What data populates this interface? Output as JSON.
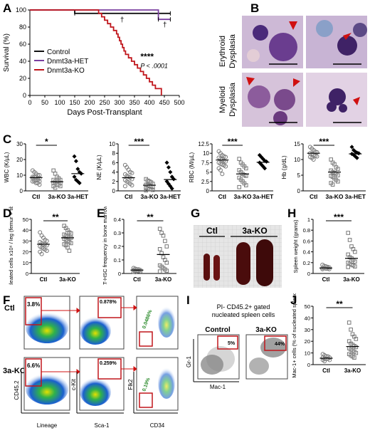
{
  "panels": {
    "A": "A",
    "B": "B",
    "C": "C",
    "D": "D",
    "E": "E",
    "F": "F",
    "G": "G",
    "H": "H",
    "I": "I",
    "J": "J"
  },
  "colors": {
    "control": "#111111",
    "het": "#7a3fa0",
    "ko": "#c0161c",
    "arrow": "#d01010",
    "gate": "#c0161c",
    "cell_bg": "#d8c8e0",
    "nucleus": "#5a2f8a"
  },
  "panelB": {
    "erythroid_label": "Erythroid\nDysplasia",
    "myeloid_label": "Myeloid\nDysplasia",
    "erythroid_line1": "Erythroid",
    "erythroid_line2": "Dysplasia",
    "myeloid_line1": "Myeloid",
    "myeloid_line2": "Dysplasia"
  },
  "panelF": {
    "ctl_label": "Ctl",
    "ko_label": "3a-KO",
    "ylabel1": "CD45.2",
    "xlabel1": "Lineage",
    "ylabel2": "c-Kit",
    "xlabel2": "Sca-1",
    "ylabel3": "Flk2",
    "xlabel3": "CD34",
    "gates": {
      "ctl": [
        "3.8%",
        "0.878%",
        "0.0486%"
      ],
      "ko": [
        "6.6%",
        "0.259%",
        "0.19%"
      ]
    }
  },
  "panelG": {
    "ctl": "Ctl",
    "ko": "3a-KO"
  },
  "panelI": {
    "title_line1": "PI- CD45.2+ gated",
    "title_line2": "nucleated spleen cells",
    "control": "Control",
    "ko": "3a-KO",
    "ylabel": "Gr-1",
    "xlabel": "Mac-1",
    "ctl_pct": "5%",
    "ko_pct": "44%"
  },
  "chart_data": [
    {
      "id": "A",
      "type": "line",
      "title": "",
      "xlabel": "Days Post-Transplant",
      "ylabel": "Survival (%)",
      "xlim": [
        0,
        500
      ],
      "ylim": [
        0,
        100
      ],
      "xticks": [
        0,
        50,
        100,
        150,
        200,
        250,
        300,
        350,
        400,
        450,
        500
      ],
      "yticks": [
        0,
        20,
        40,
        60,
        80,
        100
      ],
      "series": [
        {
          "name": "Control",
          "x": [
            0,
            150,
            470
          ],
          "y": [
            100,
            96,
            96
          ]
        },
        {
          "name": "Dnmt3a-HET",
          "x": [
            0,
            430,
            470
          ],
          "y": [
            100,
            89,
            89
          ]
        },
        {
          "name": "Dnmt3a-KO",
          "x": [
            0,
            230,
            240,
            250,
            260,
            270,
            280,
            290,
            295,
            300,
            305,
            310,
            315,
            320,
            330,
            340,
            350,
            360,
            370,
            380,
            390,
            400,
            410,
            420,
            440
          ],
          "y": [
            100,
            96,
            92,
            88,
            84,
            80,
            76,
            72,
            68,
            64,
            60,
            56,
            52,
            48,
            44,
            40,
            36,
            32,
            28,
            24,
            20,
            16,
            12,
            8,
            0
          ]
        }
      ],
      "annotations": [
        "****",
        "P < .0001",
        "†",
        "†"
      ],
      "legend_placement": "center-left"
    },
    {
      "id": "C-WBC",
      "type": "scatter",
      "ylabel": "WBC (K/µL)",
      "categories": [
        "Ctl",
        "3a-KO",
        "3a-HET"
      ],
      "ylim": [
        0,
        30
      ],
      "yticks": [
        0,
        10,
        20,
        30
      ],
      "sig": "*",
      "points": [
        [
          13,
          12,
          11,
          10,
          10,
          9,
          9,
          9,
          8,
          8,
          8,
          7,
          7,
          7,
          6,
          6,
          6,
          5,
          5,
          4
        ],
        [
          13,
          11,
          9,
          8,
          7,
          7,
          6,
          6,
          6,
          5,
          5,
          5,
          4,
          4,
          3,
          3,
          2
        ],
        [
          22,
          19,
          14,
          12,
          11,
          9,
          7,
          6,
          5
        ]
      ],
      "means": [
        8.5,
        5.8,
        11
      ]
    },
    {
      "id": "C-NE",
      "type": "scatter",
      "ylabel": "NE (K/µL)",
      "categories": [
        "Ctl",
        "3a-KO",
        "3a-HET"
      ],
      "ylim": [
        0,
        10
      ],
      "yticks": [
        0,
        2,
        4,
        6,
        8,
        10
      ],
      "sig": "***",
      "points": [
        [
          5.5,
          5,
          4.5,
          4,
          3.8,
          3.5,
          3.2,
          3,
          2.8,
          2.5,
          2.3,
          2,
          1.8,
          1.5,
          1.2,
          1
        ],
        [
          2.5,
          2.2,
          2,
          1.8,
          1.5,
          1.3,
          1.2,
          1,
          0.9,
          0.8,
          0.6,
          0.5,
          0.4,
          0.3,
          0.2,
          0.1
        ],
        [
          6,
          5,
          4,
          3,
          2.5,
          2,
          1.5,
          1,
          0.5
        ]
      ],
      "means": [
        2.8,
        1.2,
        2.4
      ]
    },
    {
      "id": "C-RBC",
      "type": "scatter",
      "ylabel": "RBC (M/µL)",
      "categories": [
        "Ctl",
        "3a-KO",
        "3a-HET"
      ],
      "ylim": [
        0,
        12.5
      ],
      "yticks": [
        0,
        2.5,
        5,
        7.5,
        10,
        12.5
      ],
      "sig": "***",
      "points": [
        [
          10.5,
          10,
          9.5,
          9.2,
          9,
          8.8,
          8.5,
          8.3,
          8,
          7.8,
          7.5,
          7.2,
          7,
          6.8,
          6.5,
          6,
          5.5,
          4.5
        ],
        [
          8.5,
          7.5,
          7,
          6.5,
          6,
          5.5,
          5,
          4.5,
          4.2,
          4,
          3.5,
          3,
          2.5,
          2,
          1.5,
          1
        ],
        [
          9.5,
          9,
          8.5,
          8,
          7.8,
          7.5,
          7,
          6.5,
          6
        ]
      ],
      "means": [
        8.2,
        4.5,
        7.6
      ]
    },
    {
      "id": "C-Hb",
      "type": "scatter",
      "ylabel": "Hb (g/dL)",
      "categories": [
        "Ctl",
        "3a-KO",
        "3a-HET"
      ],
      "ylim": [
        0,
        15
      ],
      "yticks": [
        0,
        5,
        10,
        15
      ],
      "sig": "***",
      "points": [
        [
          14,
          13.5,
          13,
          12.5,
          12.3,
          12,
          11.8,
          11.5,
          11.2,
          11,
          10.8,
          10.5,
          10
        ],
        [
          10,
          9,
          8.5,
          7.5,
          7,
          6.5,
          6,
          5.8,
          5.5,
          5,
          4.8,
          4.5,
          4,
          3.5,
          3,
          2.5,
          2
        ],
        [
          14,
          13,
          12.5,
          12.2,
          12,
          11.8,
          11.5,
          11,
          10.5
        ]
      ],
      "means": [
        12,
        6,
        11.8
      ]
    },
    {
      "id": "D",
      "type": "scatter",
      "ylabel": "Nucleated cells x10⁶ / leg (femur + tibia)",
      "categories": [
        "Ctl",
        "3a-KO"
      ],
      "ylim": [
        0,
        50
      ],
      "yticks": [
        0,
        10,
        20,
        30,
        40,
        50
      ],
      "sig": "**",
      "points": [
        [
          38,
          35,
          33,
          31,
          30,
          29,
          28,
          27,
          27,
          26,
          25,
          24,
          23,
          22,
          21,
          20,
          18
        ],
        [
          44,
          42,
          40,
          38,
          37,
          36,
          35,
          34,
          33,
          33,
          32,
          31,
          30,
          29,
          28,
          27,
          26,
          24,
          21
        ]
      ],
      "means": [
        27,
        33
      ]
    },
    {
      "id": "E",
      "type": "scatter",
      "ylabel": "LT-HSC frequency in bone marrow",
      "categories": [
        "Ctl",
        "3a-KO"
      ],
      "ylim": [
        0,
        0.4
      ],
      "yticks": [
        0,
        0.1,
        0.2,
        0.3,
        0.4
      ],
      "sig": "**",
      "points": [
        [
          0.04,
          0.035,
          0.03,
          0.03,
          0.025,
          0.025,
          0.02,
          0.02,
          0.018,
          0.015,
          0.012,
          0.01
        ],
        [
          0.33,
          0.3,
          0.28,
          0.24,
          0.2,
          0.18,
          0.15,
          0.12,
          0.1,
          0.08,
          0.06,
          0.05,
          0.04,
          0.03,
          0.02,
          0.015
        ]
      ],
      "means": [
        0.025,
        0.14
      ]
    },
    {
      "id": "H",
      "type": "scatter",
      "ylabel": "Spleen weight (grams)",
      "categories": [
        "Ctl",
        "3a-KO"
      ],
      "ylim": [
        0,
        1
      ],
      "yticks": [
        0,
        0.2,
        0.4,
        0.6,
        0.8,
        1.0
      ],
      "sig": "***",
      "points": [
        [
          0.16,
          0.14,
          0.13,
          0.12,
          0.11,
          0.1,
          0.1,
          0.09,
          0.09,
          0.08,
          0.08
        ],
        [
          0.75,
          0.62,
          0.5,
          0.45,
          0.4,
          0.35,
          0.3,
          0.28,
          0.25,
          0.22,
          0.2,
          0.18,
          0.16,
          0.15,
          0.13,
          0.12
        ]
      ],
      "means": [
        0.1,
        0.28
      ]
    },
    {
      "id": "J",
      "type": "scatter",
      "ylabel": "Gr-1+ Mac-1+ cells (% of nucleated splenocytes)",
      "categories": [
        "Ctl",
        "3a-KO"
      ],
      "ylim": [
        0,
        50
      ],
      "yticks": [
        0,
        10,
        20,
        30,
        40,
        50
      ],
      "sig": "**",
      "points": [
        [
          9,
          8,
          7,
          7,
          6,
          6,
          5,
          5,
          5,
          4,
          4,
          3
        ],
        [
          36,
          30,
          26,
          24,
          22,
          20,
          18,
          17,
          16,
          15,
          14,
          13,
          12,
          11,
          10,
          9,
          8,
          7,
          6
        ]
      ],
      "means": [
        5.5,
        15.5
      ]
    }
  ]
}
